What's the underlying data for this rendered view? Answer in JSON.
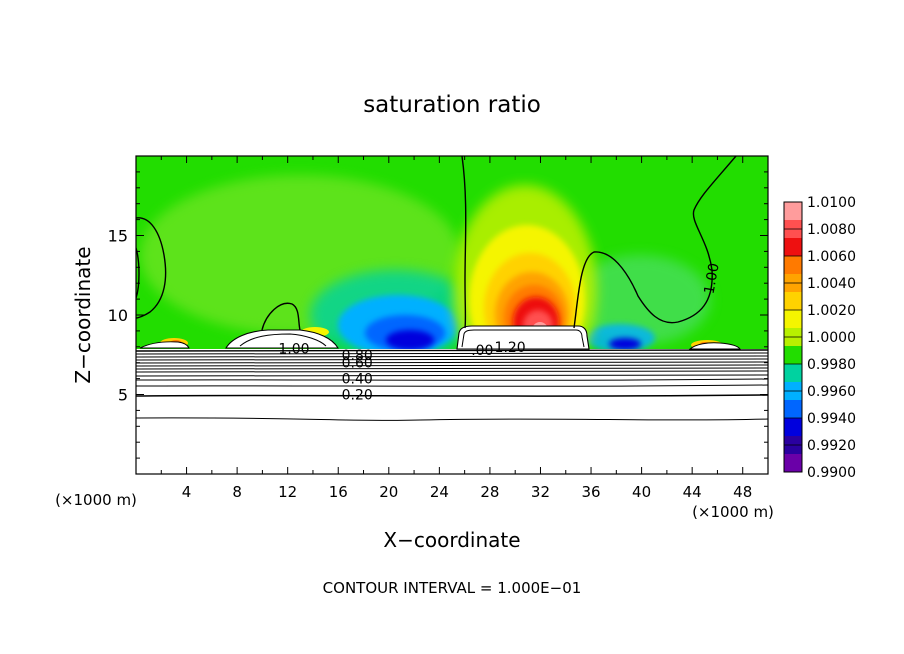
{
  "chart_data": {
    "type": "heatmap",
    "title": "saturation ratio",
    "xlabel": "X−coordinate",
    "ylabel": "Z−coordinate",
    "x_unit_left": "(×1000 m)",
    "x_unit_right": "(×1000 m)",
    "footer": "CONTOUR INTERVAL = 1.000E−01",
    "xlim": [
      0,
      50
    ],
    "ylim": [
      0,
      20
    ],
    "x_ticks": [
      "4",
      "8",
      "12",
      "16",
      "20",
      "24",
      "28",
      "32",
      "36",
      "40",
      "44",
      "48"
    ],
    "y_ticks": [
      "5",
      "10",
      "15"
    ],
    "colorbar": {
      "labels": [
        "1.0100",
        "1.0080",
        "1.0060",
        "1.0040",
        "1.0020",
        "1.0000",
        "0.9980",
        "0.9960",
        "0.9940",
        "0.9920",
        "0.9900"
      ],
      "colors": [
        "#ff9c9c",
        "#ff5050",
        "#ee1010",
        "#ff7a00",
        "#ffa300",
        "#ffd200",
        "#f5f500",
        "#b8f000",
        "#22dd00",
        "#00d2a0",
        "#00b0ff",
        "#0066ff",
        "#0000dd",
        "#2a00a0",
        "#6a00a8"
      ],
      "vmin": 0.99,
      "vmax": 1.01
    },
    "contour_labels": [
      {
        "text": "1.00",
        "x": 12.5,
        "z": 7.9
      },
      {
        "text": "0.80",
        "x": 17.5,
        "z": 7.5
      },
      {
        "text": "0.60",
        "x": 17.5,
        "z": 7.0
      },
      {
        "text": "0.40",
        "x": 17.5,
        "z": 6.0
      },
      {
        "text": "0.20",
        "x": 17.5,
        "z": 5.0
      },
      {
        "text": ".00",
        "x": 27.4,
        "z": 7.8
      },
      {
        "text": "1.20",
        "x": 29.6,
        "z": 8.0
      },
      {
        "text": "1.00",
        "x": 45.5,
        "z": 12.3
      }
    ],
    "features": {
      "boundary_layer_top_km": 7.8,
      "max_anomaly_center": {
        "x": 31.5,
        "z": 10.5,
        "value": 1.01
      },
      "min_anomaly_center": {
        "x": 21.5,
        "z": 8.5,
        "value": 0.99
      },
      "background_value": 1.0
    }
  }
}
